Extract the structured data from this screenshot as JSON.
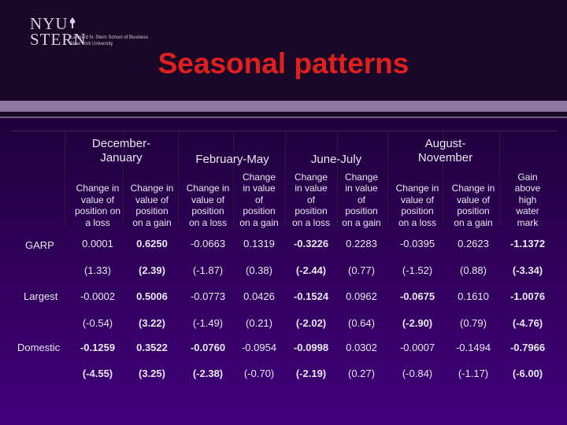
{
  "logo": {
    "line1": "NYU",
    "line2": "STERN",
    "school_line1": "Leonard N. Stern School of Business",
    "school_line2": "New York University"
  },
  "title": "Seasonal patterns",
  "colors": {
    "title": "#e0201e",
    "text": "#e8e8f0",
    "bg_bottom": "#40007a"
  },
  "table": {
    "groups": [
      "December-\nJanuary",
      "February-May",
      "June-July",
      "August-\nNovember"
    ],
    "subheaders": [
      "Change in\nvalue of\nposition on\na loss",
      "Change in\nvalue of\nposition\non a gain",
      "Change in\nvalue of\nposition\non a loss",
      "Change\nin value\nof\nposition\non a gain",
      "Change\nin value\nof\nposition\non a loss",
      "Change\nin value\nof\nposition\non a gain",
      "Change in\nvalue of\nposition\non a loss",
      "Change in\nvalue of\nposition\non a gain",
      "Gain\nabove\nhigh\nwater\nmark"
    ],
    "rows": [
      {
        "label": "GARP",
        "values": [
          "0.0001",
          "0.6250",
          "-0.0663",
          "0.1319",
          "-0.3226",
          "0.2283",
          "-0.0395",
          "0.2623",
          "-1.1372"
        ],
        "tstats": [
          "(1.33)",
          "(2.39)",
          "(-1.87)",
          "(0.38)",
          "(-2.44)",
          "(0.77)",
          "(-1.52)",
          "(0.88)",
          "(-3.34)"
        ],
        "bold": [
          false,
          true,
          false,
          false,
          true,
          false,
          false,
          false,
          true
        ]
      },
      {
        "label": "Largest",
        "values": [
          "-0.0002",
          "0.5006",
          "-0.0773",
          "0.0426",
          "-0.1524",
          "0.0962",
          "-0.0675",
          "0.1610",
          "-1.0076"
        ],
        "tstats": [
          "(-0.54)",
          "(3.22)",
          "(-1.49)",
          "(0.21)",
          "(-2.02)",
          "(0.64)",
          "(-2.90)",
          "(0.79)",
          "(-4.76)"
        ],
        "bold": [
          false,
          true,
          false,
          false,
          true,
          false,
          true,
          false,
          true
        ]
      },
      {
        "label": "Domestic",
        "values": [
          "-0.1259",
          "0.3522",
          "-0.0760",
          "-0.0954",
          "-0.0998",
          "0.0302",
          "-0.0007",
          "-0.1494",
          "-0.7966"
        ],
        "tstats": [
          "(-4.55)",
          "(3.25)",
          "(-2.38)",
          "(-0.70)",
          "(-2.19)",
          "(0.27)",
          "(-0.84)",
          "(-1.17)",
          "(-6.00)"
        ],
        "bold": [
          true,
          true,
          true,
          false,
          true,
          false,
          false,
          false,
          true
        ]
      }
    ]
  }
}
